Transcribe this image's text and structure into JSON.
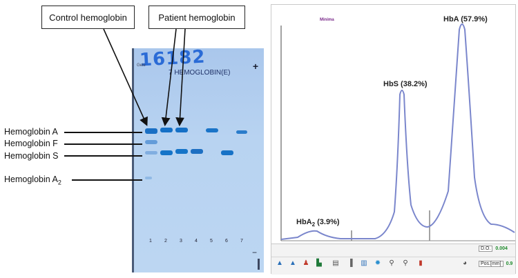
{
  "callouts": {
    "control": "Control hemoglobin",
    "patient": "Patient hemoglobin"
  },
  "band_labels": {
    "hba": "Hemoglobin A",
    "hbf": "Hemoglobin F",
    "hbs": "Hemoglobin S",
    "hba2_main": "Hemoglobin A",
    "hba2_sub": "2"
  },
  "gel": {
    "title": "16182",
    "subtitle": "7 HEMOGLOBIN(E)",
    "plus_sign": "+",
    "minus_sign": "−",
    "corner_text": "Gele",
    "lane_numbers": [
      "1",
      "2",
      "3",
      "4",
      "5",
      "6",
      "7"
    ],
    "band_color": "#1673c7"
  },
  "densitometer": {
    "minima_label": "Minima",
    "peaks": {
      "hba2": {
        "name": "HbA",
        "sub": "2",
        "percent": " (3.9%)"
      },
      "hbs": {
        "text": "HbS (38.2%)"
      },
      "hba": {
        "text": "HbA (57.9%)"
      }
    },
    "trace_color": "#7a86cc",
    "readouts": {
      "od_label": "D.O.",
      "od_value": "0.004",
      "pos_label": "Pos.[mm]",
      "pos_value": "0.9"
    },
    "toolbar_icons": [
      "peak-add-icon",
      "peak-up-icon",
      "peak-person-icon",
      "baseline-icon",
      "print-icon",
      "bar-icon",
      "chart-icon",
      "gear-icon",
      "wrench-icon",
      "tune-icon",
      "stamp-icon",
      "paint-icon"
    ]
  }
}
